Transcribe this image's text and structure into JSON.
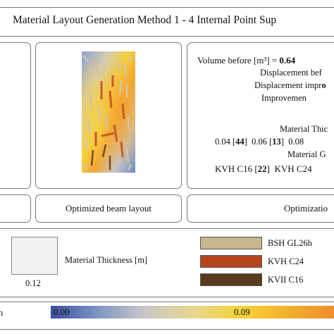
{
  "header": {
    "title": "Material Layout Generation Method 1 - 4 Internal Point Sup"
  },
  "panels": {
    "middle_caption": "Optimized beam layout",
    "right_caption": "Optimizatio"
  },
  "stats": {
    "volume_label": "Volume before [m³] = ",
    "volume_value": "0.64",
    "displacement_before": "Displacement bef",
    "displacement_impr_a": "Displacement impr",
    "displacement_impr_b": "o",
    "improvement": "Improvemen",
    "material_thickness_heading": "Material Thic",
    "thickness_1_val": "0.04 [",
    "thickness_1_cnt": "44",
    "thickness_1_end": "]",
    "thickness_2_val": "0.06 [",
    "thickness_2_cnt": "13",
    "thickness_2_end": "]",
    "thickness_3_val": "0.08",
    "material_grade_heading": "Material G",
    "grade_1_val": "KVH C16 [",
    "grade_1_cnt": "22",
    "grade_1_end": "]",
    "grade_2_val": "KVH C24"
  },
  "legend": {
    "thickness_label": "Material Thickness [m]",
    "thickness_value": "0.12",
    "materials": [
      {
        "name": "BSH GL26h",
        "color": "#c8b68c"
      },
      {
        "name": "KVH C24",
        "color": "#b5451f"
      },
      {
        "name": "KVII C16",
        "color": "#5a3a1c"
      }
    ]
  },
  "colorbar": {
    "unit_label": "n",
    "min_label": "0.00",
    "mid_label": "0.09",
    "colors": [
      "#3b4fa0",
      "#7f96c4",
      "#c9c8c6",
      "#e8d690",
      "#f4d43a",
      "#f3b12d",
      "#ef8d2c"
    ]
  },
  "beam_colors": {
    "light": "#cfc6aa",
    "orange": "#c85a2a",
    "dark": "#7a4a24"
  }
}
